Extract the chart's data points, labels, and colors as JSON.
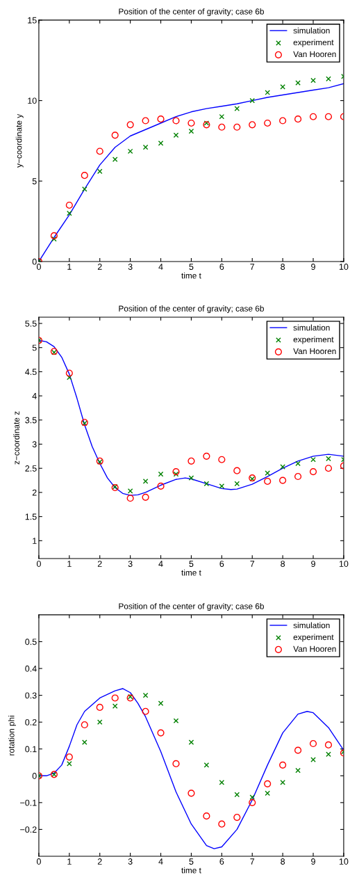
{
  "chart_data": [
    {
      "type": "line",
      "title": "Position of the center of gravity; case 6b",
      "xlabel": "time t",
      "ylabel": "y−coordinate y",
      "xlim": [
        0,
        10
      ],
      "xticks": [
        0,
        1,
        2,
        3,
        4,
        5,
        6,
        7,
        8,
        9,
        10
      ],
      "ylim": [
        0,
        15
      ],
      "yticks": [
        0,
        5,
        10,
        15
      ],
      "grid": false,
      "legend": "top right",
      "x": [
        0,
        0.5,
        1,
        1.5,
        2,
        2.5,
        3,
        3.5,
        4,
        4.5,
        5,
        5.5,
        6,
        6.5,
        7,
        7.5,
        8,
        8.5,
        9,
        9.5,
        10
      ],
      "series": [
        {
          "name": "simulation",
          "color": "#0000ff",
          "marker": "none",
          "line_style": "solid",
          "x": [
            0,
            0.5,
            1,
            1.5,
            2,
            2.5,
            3,
            3.5,
            4,
            4.5,
            5,
            5.5,
            6,
            6.5,
            7,
            7.5,
            8,
            8.5,
            9,
            9.5,
            10
          ],
          "values": [
            0,
            1.5,
            2.9,
            4.5,
            6.0,
            7.1,
            7.8,
            8.2,
            8.6,
            9.0,
            9.3,
            9.5,
            9.65,
            9.8,
            10.0,
            10.2,
            10.35,
            10.5,
            10.65,
            10.8,
            11.05
          ]
        },
        {
          "name": "experiment",
          "type": "scatter",
          "color": "#008000",
          "marker": "cross",
          "values": [
            0,
            1.4,
            3.0,
            4.5,
            5.6,
            6.35,
            6.85,
            7.1,
            7.35,
            7.85,
            8.1,
            8.6,
            9.0,
            9.5,
            10.0,
            10.5,
            10.85,
            11.1,
            11.25,
            11.35,
            11.5
          ]
        },
        {
          "name": "Van Hooren",
          "type": "scatter",
          "color": "#ff0000",
          "marker": "circle",
          "values": [
            0,
            1.6,
            3.5,
            5.35,
            6.85,
            7.85,
            8.5,
            8.75,
            8.85,
            8.75,
            8.6,
            8.5,
            8.35,
            8.35,
            8.5,
            8.6,
            8.75,
            8.85,
            9.0,
            9.0,
            9.0
          ]
        }
      ]
    },
    {
      "type": "line",
      "title": "Position of the center of gravity; case 6b",
      "xlabel": "time t",
      "ylabel": "z−coordinate z",
      "xlim": [
        0,
        10
      ],
      "xticks": [
        0,
        1,
        2,
        3,
        4,
        5,
        6,
        7,
        8,
        9,
        10
      ],
      "ylim": [
        0.63,
        5.63
      ],
      "yticks": [
        1,
        1.5,
        2,
        2.5,
        3,
        3.5,
        4,
        4.5,
        5,
        5.5
      ],
      "grid": false,
      "legend": "top right",
      "x": [
        0,
        0.5,
        1,
        1.5,
        2,
        2.5,
        3,
        3.5,
        4,
        4.5,
        5,
        5.5,
        6,
        6.5,
        7,
        7.5,
        8,
        8.5,
        9,
        9.5,
        10
      ],
      "series": [
        {
          "name": "simulation",
          "color": "#0000ff",
          "marker": "none",
          "line_style": "solid",
          "x": [
            0,
            0.25,
            0.5,
            0.75,
            1,
            1.25,
            1.5,
            1.75,
            2,
            2.25,
            2.5,
            2.75,
            3,
            3.25,
            3.5,
            4,
            4.5,
            4.8,
            5,
            5.5,
            6,
            6.3,
            6.5,
            7,
            7.5,
            8,
            8.5,
            9,
            9.5,
            10
          ],
          "values": [
            5.15,
            5.12,
            5.02,
            4.8,
            4.45,
            3.95,
            3.4,
            2.95,
            2.6,
            2.3,
            2.1,
            1.98,
            1.94,
            1.95,
            2.0,
            2.15,
            2.27,
            2.3,
            2.28,
            2.18,
            2.08,
            2.06,
            2.07,
            2.17,
            2.33,
            2.5,
            2.65,
            2.75,
            2.79,
            2.75
          ]
        },
        {
          "name": "experiment",
          "type": "scatter",
          "color": "#008000",
          "marker": "cross",
          "values": [
            5.15,
            4.9,
            4.38,
            3.43,
            2.63,
            2.12,
            2.03,
            2.23,
            2.38,
            2.38,
            2.3,
            2.18,
            2.13,
            2.18,
            2.28,
            2.4,
            2.53,
            2.6,
            2.68,
            2.7,
            2.68
          ]
        },
        {
          "name": "Van Hooren",
          "type": "scatter",
          "color": "#ff0000",
          "marker": "circle",
          "values": [
            5.15,
            4.92,
            4.47,
            3.45,
            2.65,
            2.1,
            1.88,
            1.9,
            2.13,
            2.43,
            2.65,
            2.75,
            2.68,
            2.45,
            2.3,
            2.23,
            2.25,
            2.33,
            2.43,
            2.5,
            2.55
          ]
        }
      ]
    },
    {
      "type": "line",
      "title": "Position of the center of gravity; case 6b",
      "xlabel": "time t",
      "ylabel": "rotation phi",
      "xlim": [
        0,
        10
      ],
      "xticks": [
        0,
        1,
        2,
        3,
        4,
        5,
        6,
        7,
        8,
        9,
        10
      ],
      "ylim": [
        -0.3,
        0.6
      ],
      "yticks": [
        {
          "value": -0.2,
          "label": "−0.2"
        },
        {
          "value": -0.1,
          "label": "−0.1"
        },
        0,
        0.1,
        0.2,
        0.3,
        0.4,
        0.5
      ],
      "grid": false,
      "legend": "top right",
      "x": [
        0,
        0.5,
        1,
        1.5,
        2,
        2.5,
        3,
        3.5,
        4,
        4.5,
        5,
        5.5,
        6,
        6.5,
        7,
        7.5,
        8,
        8.5,
        9,
        9.5,
        10
      ],
      "series": [
        {
          "name": "simulation",
          "color": "#0000ff",
          "marker": "none",
          "line_style": "solid",
          "x": [
            0,
            0.25,
            0.5,
            0.75,
            1,
            1.25,
            1.5,
            2,
            2.5,
            2.75,
            3,
            3.25,
            3.5,
            4,
            4.5,
            5,
            5.5,
            5.75,
            6,
            6.5,
            7,
            7.5,
            8,
            8.5,
            8.8,
            9,
            9.5,
            10
          ],
          "values": [
            0,
            0.0,
            0.01,
            0.04,
            0.11,
            0.19,
            0.24,
            0.29,
            0.317,
            0.325,
            0.31,
            0.27,
            0.22,
            0.09,
            -0.06,
            -0.18,
            -0.26,
            -0.272,
            -0.265,
            -0.2,
            -0.09,
            0.04,
            0.16,
            0.23,
            0.24,
            0.235,
            0.18,
            0.095
          ]
        },
        {
          "name": "experiment",
          "type": "scatter",
          "color": "#008000",
          "marker": "cross",
          "values": [
            0,
            0.005,
            0.045,
            0.125,
            0.2,
            0.26,
            0.295,
            0.3,
            0.27,
            0.205,
            0.125,
            0.04,
            -0.025,
            -0.07,
            -0.08,
            -0.065,
            -0.025,
            0.02,
            0.06,
            0.08,
            0.09
          ]
        },
        {
          "name": "Van Hooren",
          "type": "scatter",
          "color": "#ff0000",
          "marker": "circle",
          "values": [
            0,
            0.005,
            0.07,
            0.19,
            0.255,
            0.29,
            0.29,
            0.24,
            0.16,
            0.045,
            -0.065,
            -0.15,
            -0.18,
            -0.155,
            -0.1,
            -0.03,
            0.04,
            0.095,
            0.12,
            0.115,
            0.085
          ]
        }
      ]
    }
  ]
}
